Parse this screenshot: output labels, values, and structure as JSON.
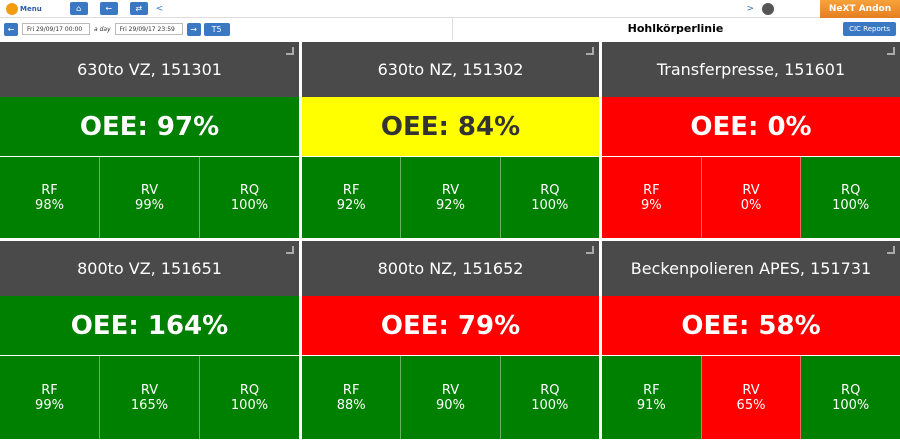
{
  "topbar": {
    "menu": "Menu",
    "back": "<",
    "forward": ">",
    "brand": "NeXT Andon"
  },
  "toolbar": {
    "from": "Fri 29/09/17 00:00",
    "span": "a day",
    "to": "Fri 29/09/17 23:59",
    "shift": "T5",
    "title": "Hohlkörperlinie",
    "reports": "CIC Reports"
  },
  "tiles": [
    {
      "name": "630to VZ, 151301",
      "oee": "OEE: 97%",
      "color": "#008000",
      "metrics": [
        {
          "label": "RF",
          "value": "98%",
          "color": "#008000"
        },
        {
          "label": "RV",
          "value": "99%",
          "color": "#008000"
        },
        {
          "label": "RQ",
          "value": "100%",
          "color": "#008000"
        }
      ]
    },
    {
      "name": "630to NZ, 151302",
      "oee": "OEE: 84%",
      "color": "#ffff00",
      "metrics": [
        {
          "label": "RF",
          "value": "92%",
          "color": "#008000"
        },
        {
          "label": "RV",
          "value": "92%",
          "color": "#008000"
        },
        {
          "label": "RQ",
          "value": "100%",
          "color": "#008000"
        }
      ]
    },
    {
      "name": "Transferpresse, 151601",
      "oee": "OEE: 0%",
      "color": "#ff0000",
      "metrics": [
        {
          "label": "RF",
          "value": "9%",
          "color": "#ff0000"
        },
        {
          "label": "RV",
          "value": "0%",
          "color": "#ff0000"
        },
        {
          "label": "RQ",
          "value": "100%",
          "color": "#008000"
        }
      ]
    },
    {
      "name": "800to VZ, 151651",
      "oee": "OEE: 164%",
      "color": "#008000",
      "metrics": [
        {
          "label": "RF",
          "value": "99%",
          "color": "#008000"
        },
        {
          "label": "RV",
          "value": "165%",
          "color": "#008000"
        },
        {
          "label": "RQ",
          "value": "100%",
          "color": "#008000"
        }
      ]
    },
    {
      "name": "800to NZ, 151652",
      "oee": "OEE: 79%",
      "color": "#ff0000",
      "metrics": [
        {
          "label": "RF",
          "value": "88%",
          "color": "#008000"
        },
        {
          "label": "RV",
          "value": "90%",
          "color": "#008000"
        },
        {
          "label": "RQ",
          "value": "100%",
          "color": "#008000"
        }
      ]
    },
    {
      "name": "Beckenpolieren APES, 151731",
      "oee": "OEE: 58%",
      "color": "#ff0000",
      "metrics": [
        {
          "label": "RF",
          "value": "91%",
          "color": "#008000"
        },
        {
          "label": "RV",
          "value": "65%",
          "color": "#ff0000"
        },
        {
          "label": "RQ",
          "value": "100%",
          "color": "#008000"
        }
      ]
    }
  ]
}
